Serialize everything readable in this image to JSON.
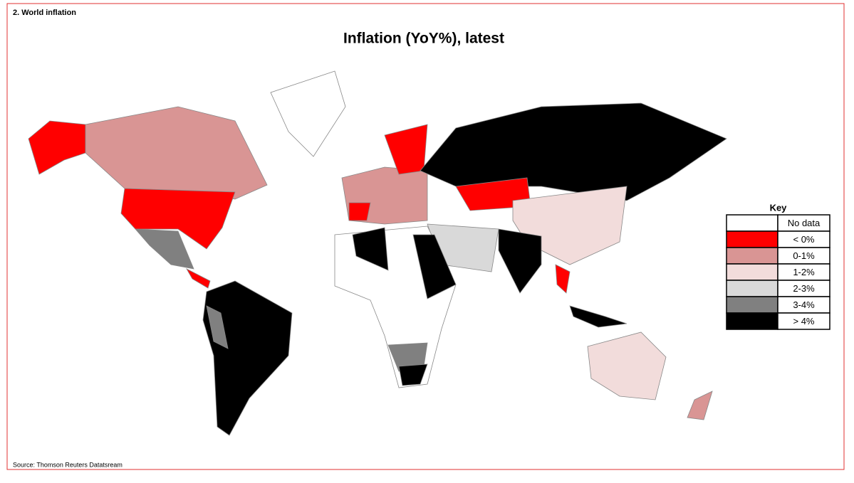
{
  "header": {
    "section": "2. World inflation",
    "title": "Inflation (YoY%), latest"
  },
  "key": {
    "title": "Key",
    "items": [
      {
        "label": "No data",
        "color": "#ffffff"
      },
      {
        "label": "< 0%",
        "color": "#ff0000"
      },
      {
        "label": "0-1%",
        "color": "#d99594"
      },
      {
        "label": "1-2%",
        "color": "#f2dcdb"
      },
      {
        "label": "2-3%",
        "color": "#d9d9d9"
      },
      {
        "label": "3-4%",
        "color": "#808080"
      },
      {
        "label": "> 4%",
        "color": "#000000"
      }
    ]
  },
  "footer": {
    "source": "Source: Thomson Reuters Datatsream"
  }
}
